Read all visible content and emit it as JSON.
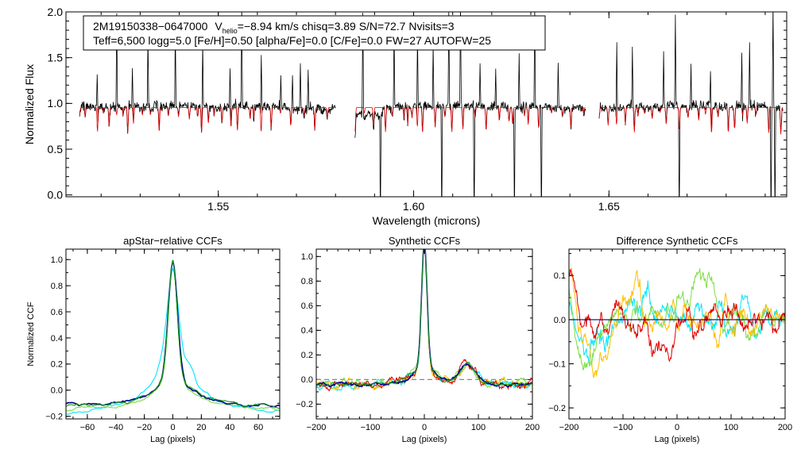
{
  "chart_data": [
    {
      "type": "line",
      "id": "spectrum",
      "xlabel": "Wavelength (microns)",
      "ylabel": "Normalized Flux",
      "xlim": [
        1.511,
        1.6955
      ],
      "ylim": [
        -0.02,
        2.0
      ],
      "xticks": [
        1.55,
        1.6,
        1.65
      ],
      "xtick_labels": [
        "1.55",
        "1.60",
        "1.65"
      ],
      "yticks": [
        0.0,
        0.5,
        1.0,
        1.5,
        2.0
      ],
      "ytick_labels": [
        "0.0",
        "0.5",
        "1.0",
        "1.5",
        "2.0"
      ],
      "annotation": {
        "line1_name": "2M19150338−0647000",
        "line1_vlabel": "V",
        "line1_vsub": "helio",
        "line1_rest": "=−8.94 km/s  chisq=3.89  S/N=72.7  Nvisits=3",
        "line2": "Teff=6,500 logg=5.0 [Fe/H]=0.50 [alpha/Fe]=0.0 [C/Fe]=0.0 FW=27 AUTOFW=25"
      },
      "chips": [
        [
          1.5145,
          1.58
        ],
        [
          1.585,
          1.644
        ],
        [
          1.6475,
          1.6945
        ]
      ],
      "series": [
        {
          "name": "observed",
          "color": "#000000"
        },
        {
          "name": "model",
          "color": "#e00000"
        }
      ],
      "emission_spikes": [
        1.519,
        1.524,
        1.528,
        1.532,
        1.539,
        1.546,
        1.553,
        1.556,
        1.561,
        1.566,
        1.569,
        1.571,
        1.573,
        1.587,
        1.595,
        1.601,
        1.605,
        1.609,
        1.612,
        1.617,
        1.621,
        1.627,
        1.631,
        1.637,
        1.652,
        1.656,
        1.664,
        1.667,
        1.671,
        1.676,
        1.684,
        1.686,
        1.692
      ],
      "deep_absorptions": [
        1.5915,
        1.6072,
        1.6155,
        1.6258,
        1.6327,
        1.668,
        1.6915,
        1.6925
      ]
    },
    {
      "type": "line",
      "id": "apstar-ccf",
      "title": "apStar−relative CCFs",
      "xlabel": "Lag (pixels)",
      "ylabel": "Normalized CCF",
      "xlim": [
        -75,
        75
      ],
      "ylim": [
        -0.22,
        1.08
      ],
      "xticks": [
        -60,
        -40,
        -20,
        0,
        20,
        40,
        60
      ],
      "xtick_labels": [
        "−60",
        "−40",
        "−20",
        "0",
        "20",
        "40",
        "60"
      ],
      "yticks": [
        -0.2,
        0.0,
        0.2,
        0.4,
        0.6,
        0.8,
        1.0
      ],
      "ytick_labels": [
        "−0.2",
        "0.0",
        "0.2",
        "0.4",
        "0.6",
        "0.8",
        "1.0"
      ],
      "series": [
        {
          "name": "visit-1",
          "color": "#00e5ff",
          "peak": 0.93,
          "core_width": 4.0,
          "wing_amp": 0.3,
          "wing_width": 20,
          "floor": -0.18
        },
        {
          "name": "visit-2",
          "color": "#7dde44",
          "peak": 1.0,
          "core_width": 3.0,
          "wing_amp": 0.17,
          "wing_width": 15,
          "floor": -0.14
        },
        {
          "name": "visit-3",
          "color": "#000090",
          "peak": 1.0,
          "core_width": 3.2,
          "wing_amp": 0.18,
          "wing_width": 15,
          "floor": -0.12
        },
        {
          "name": "visit-4",
          "color": "#1a9a1a",
          "peak": 1.0,
          "core_width": 3.0,
          "wing_amp": 0.17,
          "wing_width": 15,
          "floor": -0.12
        }
      ]
    },
    {
      "type": "line",
      "id": "synthetic-ccf",
      "title": "Synthetic CCFs",
      "xlabel": "Lag (pixels)",
      "xlim": [
        -200,
        200
      ],
      "ylim": [
        -0.32,
        1.06
      ],
      "xticks": [
        -200,
        -100,
        0,
        100,
        200
      ],
      "xtick_labels": [
        "−200",
        "−100",
        "0",
        "100",
        "200"
      ],
      "yticks": [
        -0.2,
        0.0,
        0.2,
        0.4,
        0.6,
        0.8,
        1.0
      ],
      "ytick_labels": [
        "−0.2",
        "0.0",
        "0.2",
        "0.4",
        "0.6",
        "0.8",
        "1.0"
      ],
      "zero_line": 0.0,
      "series": [
        {
          "name": "visit-1",
          "color": "#00e5ff"
        },
        {
          "name": "visit-2",
          "color": "#7dde44"
        },
        {
          "name": "visit-3",
          "color": "#ffc000"
        },
        {
          "name": "visit-4",
          "color": "#e00000"
        },
        {
          "name": "combined",
          "color": "#000090"
        },
        {
          "name": "template",
          "color": "#1a9a1a"
        }
      ],
      "features": {
        "bump_lag": 80,
        "bump_height": 0.16
      }
    },
    {
      "type": "line",
      "id": "difference-ccf",
      "title": "Difference Synthetic CCFs",
      "xlabel": "Lag (pixels)",
      "xlim": [
        -200,
        200
      ],
      "ylim": [
        -0.225,
        0.16
      ],
      "xticks": [
        -200,
        -100,
        0,
        100,
        200
      ],
      "xtick_labels": [
        "−200",
        "−100",
        "0",
        "100",
        "200"
      ],
      "yticks": [
        -0.2,
        -0.1,
        0.0,
        0.1
      ],
      "ytick_labels": [
        "−0.2",
        "−0.1",
        "0.0",
        "0.1"
      ],
      "zero_line": 0.0,
      "series": [
        {
          "name": "visit-1",
          "color": "#00e5ff"
        },
        {
          "name": "visit-2",
          "color": "#7dde44"
        },
        {
          "name": "visit-3",
          "color": "#ffc000"
        },
        {
          "name": "visit-4",
          "color": "#e00000"
        }
      ]
    }
  ]
}
